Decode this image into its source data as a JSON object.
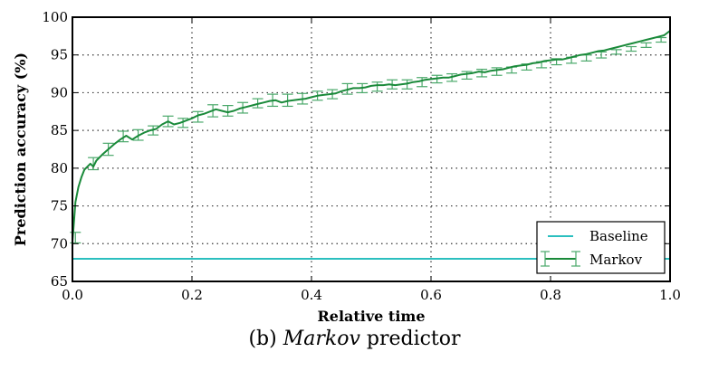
{
  "chart_data": {
    "type": "line",
    "title": "",
    "xlabel": "Relative time",
    "ylabel": "Prediction accuracy (%)",
    "xlim": [
      0.0,
      1.0
    ],
    "ylim": [
      65,
      100
    ],
    "xticks": [
      0.0,
      0.2,
      0.4,
      0.6,
      0.8,
      1.0
    ],
    "xtick_labels": [
      "0.0",
      "0.2",
      "0.4",
      "0.6",
      "0.8",
      "1.0"
    ],
    "yticks": [
      65,
      70,
      75,
      80,
      85,
      90,
      95,
      100
    ],
    "ytick_labels": [
      "65",
      "70",
      "75",
      "80",
      "85",
      "90",
      "95",
      "100"
    ],
    "grid": true,
    "legend_position": "bottom-right",
    "series": [
      {
        "name": "Baseline",
        "color": "#2bbfbf",
        "kind": "hline",
        "y": 68.0
      },
      {
        "name": "Markov",
        "color": "#1a8a3a",
        "errorbar_color": "#4aa86a",
        "kind": "line-errorbar",
        "x": [
          0.0,
          0.005,
          0.01,
          0.015,
          0.02,
          0.03,
          0.035,
          0.04,
          0.05,
          0.06,
          0.07,
          0.08,
          0.09,
          0.1,
          0.11,
          0.12,
          0.13,
          0.14,
          0.15,
          0.16,
          0.17,
          0.18,
          0.19,
          0.2,
          0.21,
          0.22,
          0.23,
          0.24,
          0.25,
          0.26,
          0.27,
          0.28,
          0.29,
          0.3,
          0.31,
          0.32,
          0.33,
          0.34,
          0.35,
          0.36,
          0.37,
          0.38,
          0.39,
          0.4,
          0.41,
          0.42,
          0.43,
          0.44,
          0.45,
          0.46,
          0.47,
          0.48,
          0.49,
          0.5,
          0.51,
          0.52,
          0.53,
          0.54,
          0.55,
          0.56,
          0.57,
          0.58,
          0.59,
          0.6,
          0.61,
          0.62,
          0.63,
          0.64,
          0.65,
          0.66,
          0.67,
          0.68,
          0.69,
          0.7,
          0.71,
          0.72,
          0.73,
          0.74,
          0.75,
          0.76,
          0.77,
          0.78,
          0.79,
          0.8,
          0.81,
          0.82,
          0.83,
          0.84,
          0.85,
          0.86,
          0.87,
          0.88,
          0.89,
          0.9,
          0.91,
          0.92,
          0.93,
          0.94,
          0.95,
          0.96,
          0.97,
          0.98,
          0.99,
          1.0
        ],
        "y": [
          70.2,
          75.5,
          77.5,
          78.8,
          79.8,
          80.6,
          80.2,
          81.0,
          81.8,
          82.5,
          83.2,
          83.8,
          84.3,
          83.8,
          84.3,
          84.7,
          85.0,
          85.2,
          85.8,
          86.2,
          85.8,
          86.0,
          86.3,
          86.6,
          87.0,
          87.2,
          87.5,
          87.8,
          87.6,
          87.4,
          87.6,
          87.9,
          88.1,
          88.3,
          88.5,
          88.7,
          88.9,
          89.0,
          88.7,
          88.9,
          89.0,
          89.1,
          89.2,
          89.4,
          89.6,
          89.7,
          89.8,
          89.9,
          90.2,
          90.4,
          90.6,
          90.6,
          90.7,
          90.9,
          91.0,
          91.0,
          91.1,
          91.0,
          91.1,
          91.2,
          91.4,
          91.5,
          91.7,
          91.8,
          91.9,
          92.0,
          92.0,
          92.2,
          92.4,
          92.5,
          92.6,
          92.8,
          92.7,
          92.9,
          93.0,
          93.1,
          93.3,
          93.5,
          93.6,
          93.7,
          93.9,
          94.0,
          94.2,
          94.3,
          94.4,
          94.4,
          94.6,
          94.8,
          95.0,
          95.1,
          95.3,
          95.5,
          95.6,
          95.8,
          96.0,
          96.2,
          96.4,
          96.6,
          96.8,
          97.0,
          97.2,
          97.4,
          97.6,
          98.2
        ],
        "errorbars": {
          "x": [
            0.005,
            0.035,
            0.06,
            0.085,
            0.11,
            0.135,
            0.16,
            0.185,
            0.21,
            0.235,
            0.26,
            0.285,
            0.31,
            0.335,
            0.36,
            0.385,
            0.41,
            0.435,
            0.46,
            0.485,
            0.51,
            0.535,
            0.56,
            0.585,
            0.61,
            0.635,
            0.66,
            0.685,
            0.71,
            0.735,
            0.76,
            0.785,
            0.81,
            0.835,
            0.86,
            0.885,
            0.91,
            0.935,
            0.96,
            0.985
          ],
          "y": [
            70.8,
            80.6,
            82.5,
            84.2,
            84.4,
            85.0,
            86.2,
            86.0,
            86.8,
            87.6,
            87.6,
            88.0,
            88.6,
            89.0,
            89.0,
            89.2,
            89.6,
            89.8,
            90.5,
            90.6,
            90.8,
            91.1,
            91.1,
            91.4,
            91.8,
            92.0,
            92.3,
            92.6,
            92.8,
            93.0,
            93.4,
            93.7,
            94.1,
            94.3,
            94.6,
            95.0,
            95.4,
            95.8,
            96.3,
            97.0
          ],
          "err": [
            0.7,
            0.8,
            0.8,
            0.7,
            0.7,
            0.6,
            0.7,
            0.6,
            0.7,
            0.8,
            0.7,
            0.7,
            0.6,
            0.8,
            0.8,
            0.7,
            0.6,
            0.6,
            0.7,
            0.6,
            0.6,
            0.6,
            0.6,
            0.6,
            0.5,
            0.5,
            0.5,
            0.5,
            0.5,
            0.4,
            0.4,
            0.4,
            0.4,
            0.4,
            0.4,
            0.4,
            0.3,
            0.3,
            0.3,
            0.3
          ]
        }
      }
    ]
  },
  "legend": {
    "items": [
      {
        "label": "Baseline"
      },
      {
        "label": "Markov"
      }
    ]
  },
  "caption": {
    "prefix": "(b) ",
    "italic": "Markov",
    "suffix": " predictor"
  }
}
